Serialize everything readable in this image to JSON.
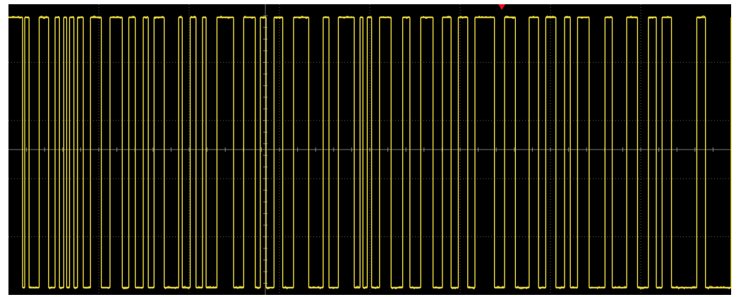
{
  "chart_data": {
    "type": "line",
    "title": "",
    "xlabel": "",
    "ylabel": "",
    "grid": true,
    "divisions": {
      "x": 8,
      "y": 5
    },
    "xlim": [
      0,
      1
    ],
    "ylim": [
      0,
      1
    ],
    "series": [
      {
        "color": "#f0e040",
        "levels": {
          "high": 0.955,
          "low": 0.025
        },
        "x": [
          0.0,
          0.0195,
          0.0225,
          0.0285,
          0.0425,
          0.0555,
          0.0645,
          0.0705,
          0.0765,
          0.0805,
          0.0845,
          0.0905,
          0.0955,
          0.1035,
          0.1135,
          0.1285,
          0.1405,
          0.1575,
          0.1665,
          0.1755,
          0.1865,
          0.1935,
          0.2015,
          0.2155,
          0.2355,
          0.2405,
          0.2515,
          0.2595,
          0.2685,
          0.2735,
          0.2885,
          0.3115,
          0.3255,
          0.3415,
          0.3485,
          0.3565,
          0.3675,
          0.3795,
          0.3945,
          0.4155,
          0.4355,
          0.4435,
          0.4565,
          0.4785,
          0.4865,
          0.4905,
          0.4965,
          0.5025,
          0.5135,
          0.5295,
          0.5455,
          0.5555,
          0.5705,
          0.5875,
          0.6005,
          0.6125,
          0.6225,
          0.6355,
          0.6455,
          0.6725,
          0.6865,
          0.7015,
          0.7205,
          0.7335,
          0.7435,
          0.7575,
          0.7695,
          0.7775,
          0.7875,
          0.8035,
          0.8255,
          0.8355,
          0.8555,
          0.8705,
          0.8855,
          0.8965,
          0.9045,
          0.9175,
          0.9525,
          0.9645,
          1.0
        ],
        "y": [
          1,
          0,
          1,
          0,
          1,
          0,
          1,
          0,
          1,
          0,
          1,
          0,
          1,
          0,
          1,
          0,
          1,
          0,
          1,
          0,
          1,
          0,
          1,
          0,
          1,
          0,
          1,
          0,
          1,
          0,
          1,
          0,
          1,
          0,
          1,
          0,
          1,
          0,
          1,
          0,
          1,
          0,
          1,
          0,
          1,
          0,
          1,
          0,
          1,
          0,
          1,
          0,
          1,
          0,
          1,
          0,
          1,
          0,
          1,
          0,
          1,
          0,
          1,
          0,
          1,
          0,
          1,
          0,
          1,
          0,
          1,
          0,
          1,
          0,
          1,
          0,
          1,
          0,
          1,
          0,
          1
        ]
      }
    ]
  },
  "marker": {
    "color": "#e8101a"
  }
}
